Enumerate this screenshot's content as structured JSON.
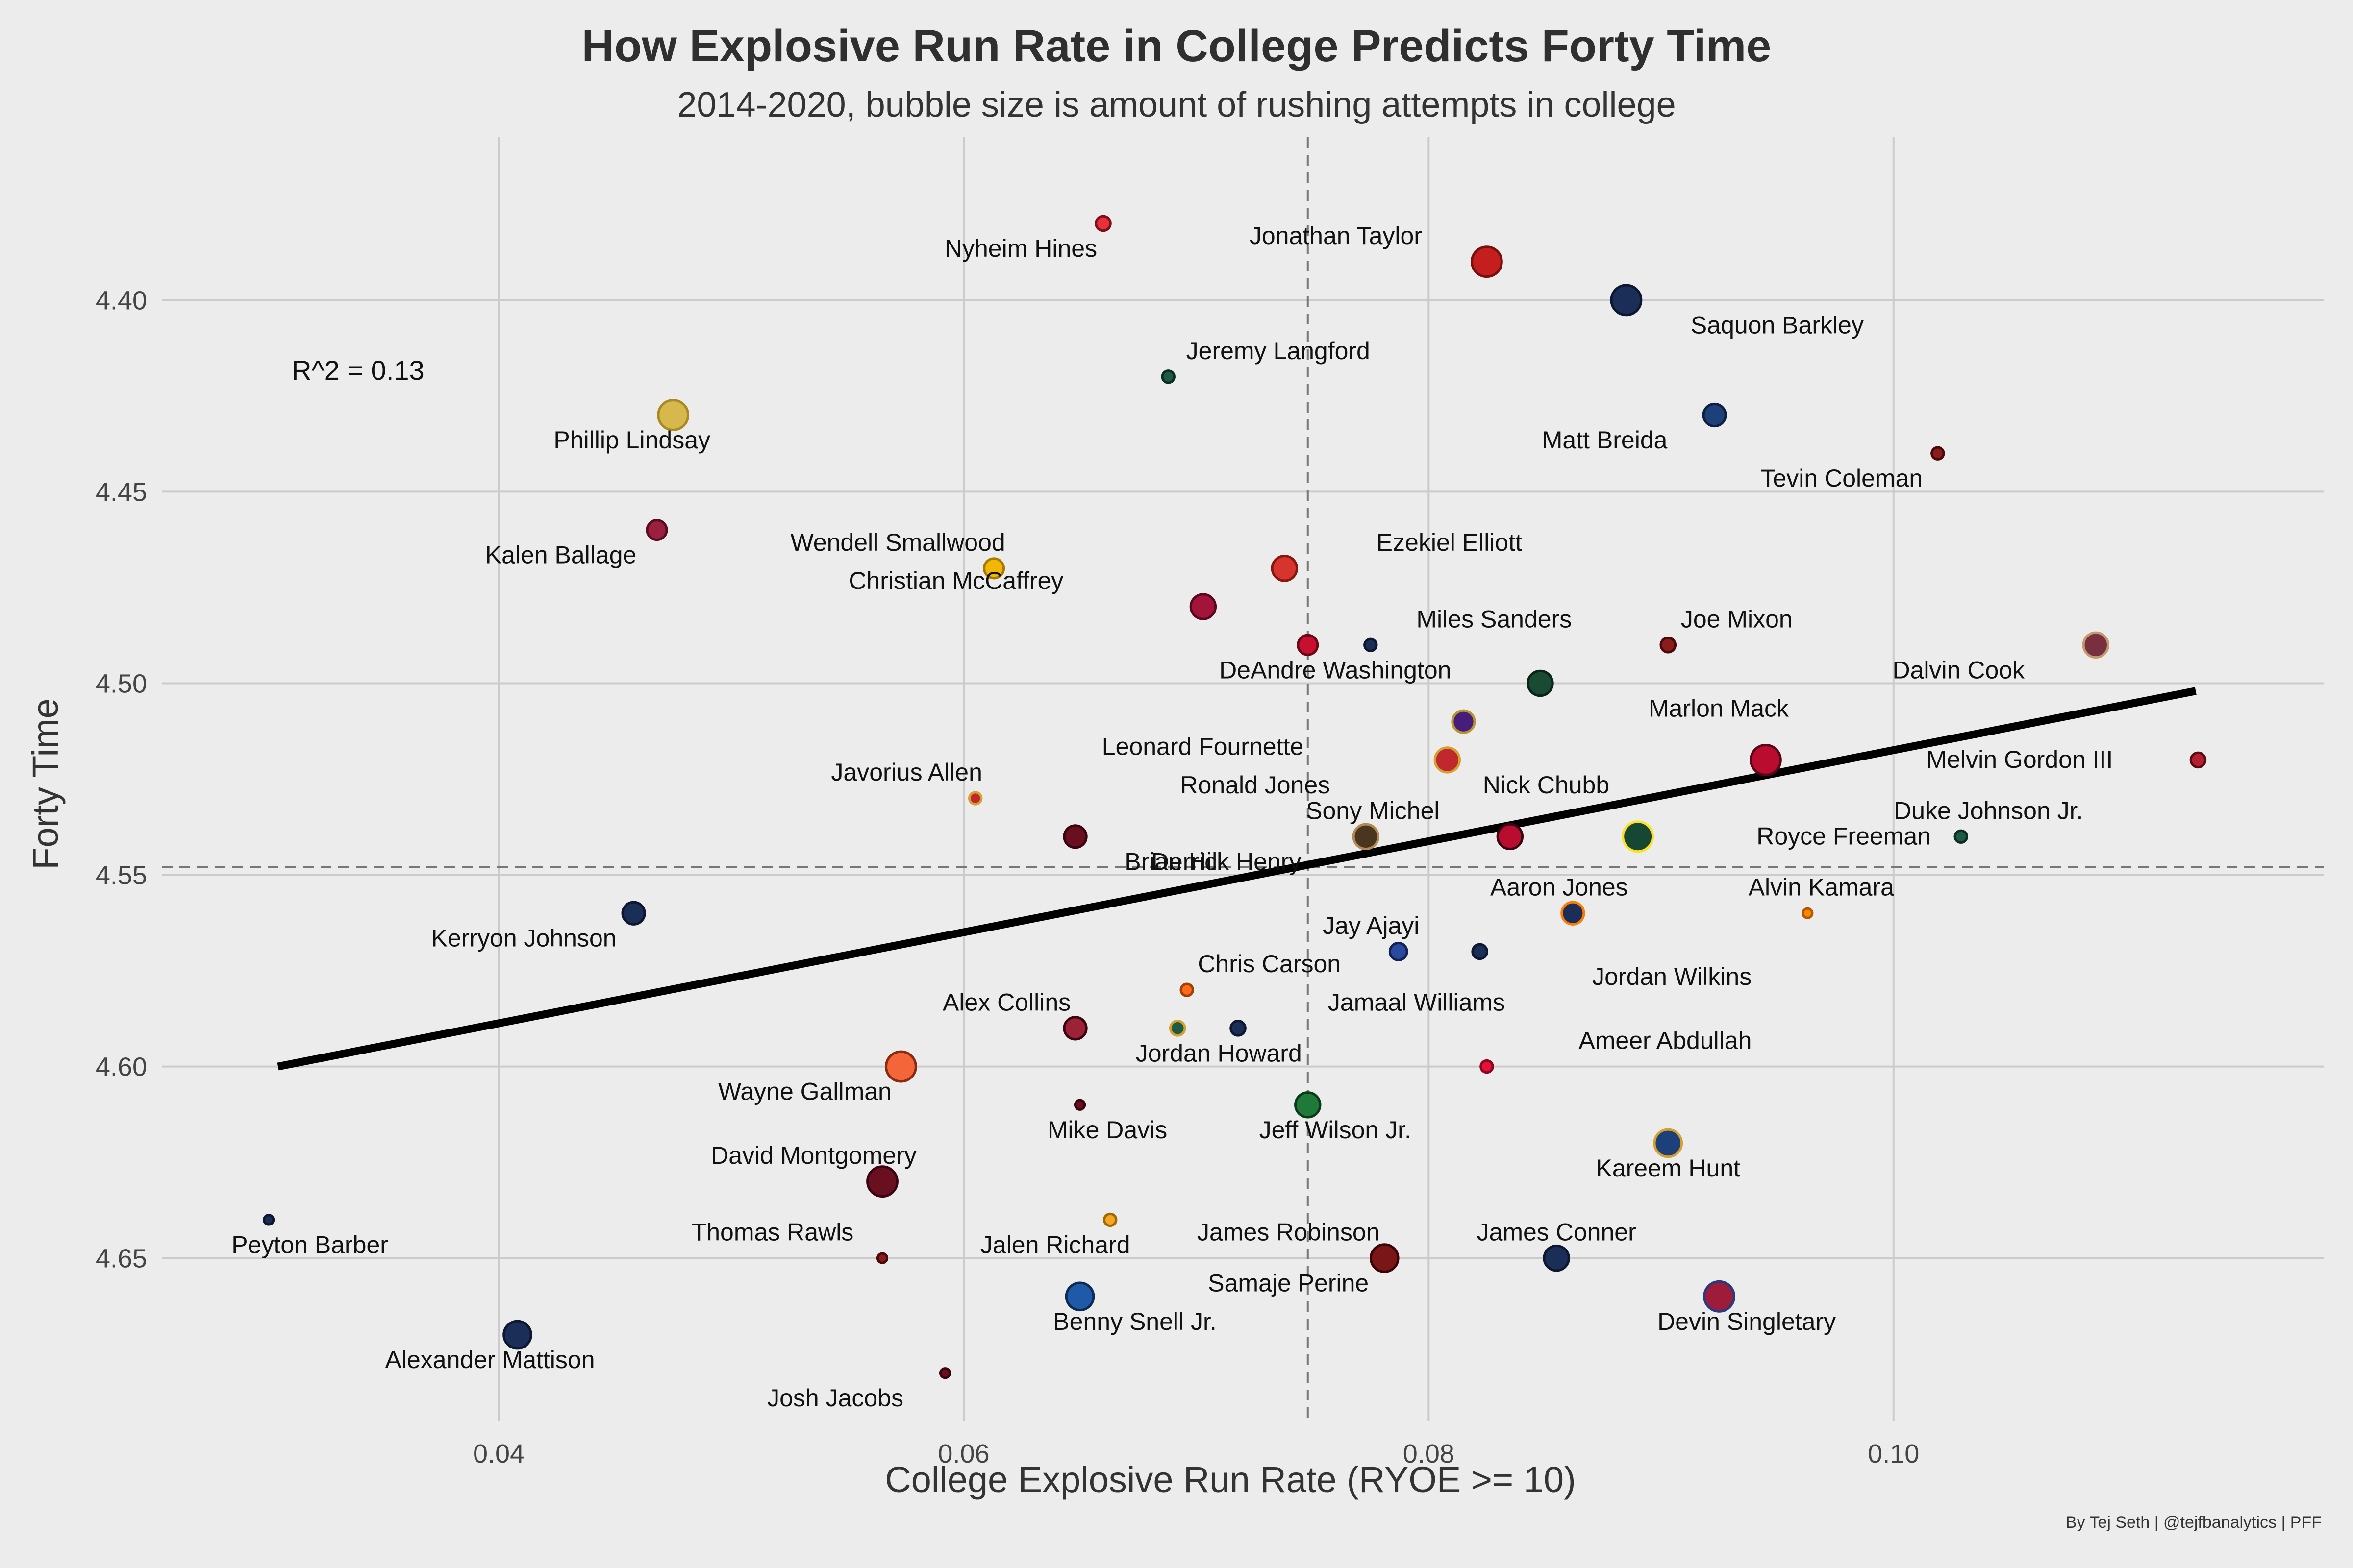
{
  "chart_data": {
    "type": "scatter",
    "title": "How Explosive Run Rate in College Predicts Forty Time",
    "subtitle": "2014-2020, bubble size is amount of rushing attempts in college",
    "xlabel": "College Explosive Run Rate (RYOE >= 10)",
    "ylabel": "Forty Time",
    "caption": "By Tej Seth | @tejfbanalytics | PFF",
    "annotation": "R^2 = 0.13",
    "xlim": [
      0.0255,
      0.1185
    ],
    "ylim": [
      4.3575,
      4.6925
    ],
    "y_inverted": true,
    "xticks": [
      0.04,
      0.06,
      0.08,
      0.1
    ],
    "xtick_labels": [
      "0.04",
      "0.06",
      "0.08",
      "0.10"
    ],
    "yticks": [
      4.4,
      4.45,
      4.5,
      4.55,
      4.6,
      4.65
    ],
    "ytick_labels": [
      "4.40",
      "4.45",
      "4.50",
      "4.55",
      "4.60",
      "4.65"
    ],
    "grid": true,
    "mean_lines": {
      "x": 0.0748,
      "y": 4.548
    },
    "trend_line": {
      "x": [
        0.0305,
        0.113
      ],
      "y": [
        4.6,
        4.502
      ]
    },
    "points": [
      {
        "name": "Nyheim Hines",
        "x": 0.066,
        "y": 4.38,
        "size": 3,
        "color": "#e8303a",
        "edge": "#7a1018",
        "label_dx": -6,
        "label_dy": 1
      },
      {
        "name": "Jonathan Taylor",
        "x": 0.0825,
        "y": 4.39,
        "size": 9,
        "color": "#c41e1e",
        "edge": "#7a0f0f",
        "label_dx": -11,
        "label_dy": -1
      },
      {
        "name": "Saquon Barkley",
        "x": 0.0885,
        "y": 4.4,
        "size": 9,
        "color": "#1b2e57",
        "edge": "#0d1730",
        "label_dx": 11,
        "label_dy": 1
      },
      {
        "name": "Jeremy Langford",
        "x": 0.0688,
        "y": 4.42,
        "size": 2,
        "color": "#1d5b45",
        "edge": "#0d2e22",
        "label_dx": 8,
        "label_dy": -1
      },
      {
        "name": "Phillip Lindsay",
        "x": 0.0475,
        "y": 4.43,
        "size": 9,
        "color": "#d6b84d",
        "edge": "#a88a20",
        "label_dx": -3,
        "label_dy": 1
      },
      {
        "name": "Matt Breida",
        "x": 0.0923,
        "y": 4.43,
        "size": 6,
        "color": "#1d3f7a",
        "edge": "#0d2040",
        "label_dx": -8,
        "label_dy": 1
      },
      {
        "name": "Tevin Coleman",
        "x": 0.1019,
        "y": 4.44,
        "size": 2,
        "color": "#8a1c1c",
        "edge": "#4a0a0a",
        "label_dx": -7,
        "label_dy": 1
      },
      {
        "name": "Kalen Ballage",
        "x": 0.0468,
        "y": 4.46,
        "size": 5,
        "color": "#9b2040",
        "edge": "#5a0c20",
        "label_dx": -7,
        "label_dy": 1
      },
      {
        "name": "Wendell Smallwood",
        "x": 0.0613,
        "y": 4.47,
        "size": 5,
        "color": "#f2b705",
        "edge": "#a87a00",
        "label_dx": -7,
        "label_dy": -1
      },
      {
        "name": "Ezekiel Elliott",
        "x": 0.0738,
        "y": 4.47,
        "size": 7,
        "color": "#d8342e",
        "edge": "#8a1612",
        "label_dx": 12,
        "label_dy": -1
      },
      {
        "name": "Christian McCaffrey",
        "x": 0.0703,
        "y": 4.48,
        "size": 7,
        "color": "#a3143a",
        "edge": "#5a0820",
        "label_dx": -18,
        "label_dy": -1
      },
      {
        "name": "Miles Sanders",
        "x": 0.0775,
        "y": 4.49,
        "size": 2,
        "color": "#1b2e57",
        "edge": "#0d1730",
        "label_dx": 9,
        "label_dy": -1
      },
      {
        "name": "DeAndre Washington",
        "x": 0.0748,
        "y": 4.49,
        "size": 5,
        "color": "#c8102e",
        "edge": "#6a0818",
        "label_dx": 2,
        "label_dy": 1
      },
      {
        "name": "Joe Mixon",
        "x": 0.0903,
        "y": 4.49,
        "size": 3,
        "color": "#8a1c1c",
        "edge": "#4a0a0a",
        "label_dx": 5,
        "label_dy": -1
      },
      {
        "name": "Dalvin Cook",
        "x": 0.1087,
        "y": 4.49,
        "size": 7,
        "color": "#782f40",
        "edge": "#c49a6c",
        "label_dx": -10,
        "label_dy": 1
      },
      {
        "name": "Marlon Mack",
        "x": 0.0848,
        "y": 4.5,
        "size": 7,
        "color": "#1a4a32",
        "edge": "#0a2418",
        "label_dx": 13,
        "label_dy": 1
      },
      {
        "name": "Leonard Fournette",
        "x": 0.0815,
        "y": 4.51,
        "size": 6,
        "color": "#461d7c",
        "edge": "#b8962e",
        "label_dx": -19,
        "label_dy": 1
      },
      {
        "name": "Melvin Gordon III",
        "x": 0.1131,
        "y": 4.52,
        "size": 3,
        "color": "#b51f2e",
        "edge": "#5a0c14",
        "label_dx": -13,
        "label_dy": 0
      },
      {
        "name": "Nick Chubb",
        "x": 0.0945,
        "y": 4.52,
        "size": 9,
        "color": "#ba0c2f",
        "edge": "#5a0616",
        "label_dx": -16,
        "label_dy": 1
      },
      {
        "name": "Ronald Jones",
        "x": 0.0808,
        "y": 4.52,
        "size": 7,
        "color": "#c0282e",
        "edge": "#d4a030",
        "label_dx": -14,
        "label_dy": 1
      },
      {
        "name": "Javorius Allen",
        "x": 0.0605,
        "y": 4.53,
        "size": 2,
        "color": "#c0282e",
        "edge": "#d4a030",
        "label_dx": -5,
        "label_dy": -1
      },
      {
        "name": "Derrick Henry",
        "x": 0.0648,
        "y": 4.54,
        "size": 6,
        "color": "#6a0f1f",
        "edge": "#3a0510",
        "label_dx": 11,
        "label_dy": 1
      },
      {
        "name": "Brian Hill",
        "x": 0.0773,
        "y": 4.54,
        "size": 7,
        "color": "#4a3520",
        "edge": "#b08a50",
        "label_dx": -14,
        "label_dy": 1
      },
      {
        "name": "Sony Michel",
        "x": 0.0835,
        "y": 4.54,
        "size": 7,
        "color": "#ba0c2f",
        "edge": "#3a0510",
        "label_dx": -10,
        "label_dy": -1
      },
      {
        "name": "Royce Freeman",
        "x": 0.089,
        "y": 4.54,
        "size": 9,
        "color": "#154733",
        "edge": "#fee123",
        "label_dx": 15,
        "label_dy": 0
      },
      {
        "name": "Duke Johnson Jr.",
        "x": 0.1029,
        "y": 4.54,
        "size": 2,
        "color": "#1d5b45",
        "edge": "#0d2e22",
        "label_dx": 2,
        "label_dy": -1
      },
      {
        "name": "Kerryon Johnson",
        "x": 0.0458,
        "y": 4.56,
        "size": 6,
        "color": "#1b2e57",
        "edge": "#0d1730",
        "label_dx": -8,
        "label_dy": 1
      },
      {
        "name": "Aaron Jones",
        "x": 0.0862,
        "y": 4.56,
        "size": 6,
        "color": "#1b2e57",
        "edge": "#ff7a00",
        "label_dx": -1,
        "label_dy": -1
      },
      {
        "name": "Alvin Kamara",
        "x": 0.0963,
        "y": 4.56,
        "size": 1,
        "color": "#ff8200",
        "edge": "#b05a00",
        "label_dx": 1,
        "label_dy": -1
      },
      {
        "name": "Jay Ajayi",
        "x": 0.0787,
        "y": 4.57,
        "size": 4,
        "color": "#2a4aa0",
        "edge": "#132250",
        "label_dx": -2,
        "label_dy": -1
      },
      {
        "name": "Jordan Wilkins",
        "x": 0.0822,
        "y": 4.57,
        "size": 3,
        "color": "#1b2e57",
        "edge": "#0d1730",
        "label_dx": 14,
        "label_dy": 1
      },
      {
        "name": "Chris Carson",
        "x": 0.0696,
        "y": 4.58,
        "size": 2,
        "color": "#ff6a1a",
        "edge": "#a04000",
        "label_dx": 6,
        "label_dy": -1
      },
      {
        "name": "Alex Collins",
        "x": 0.0648,
        "y": 4.59,
        "size": 6,
        "color": "#9d2235",
        "edge": "#3a0510",
        "label_dx": -5,
        "label_dy": -1
      },
      {
        "name": "Jordan Howard",
        "x": 0.0692,
        "y": 4.59,
        "size": 3,
        "color": "#1d5b45",
        "edge": "#d4a030",
        "label_dx": 3,
        "label_dy": 1
      },
      {
        "name": "Jamaal Williams",
        "x": 0.0718,
        "y": 4.59,
        "size": 3,
        "color": "#1b2e57",
        "edge": "#0d1730",
        "label_dx": 13,
        "label_dy": -1
      },
      {
        "name": "Wayne Gallman",
        "x": 0.0573,
        "y": 4.6,
        "size": 9,
        "color": "#f5653a",
        "edge": "#8a2a10",
        "label_dx": -7,
        "label_dy": 1
      },
      {
        "name": "Ameer Abdullah",
        "x": 0.0825,
        "y": 4.6,
        "size": 2,
        "color": "#e8103a",
        "edge": "#8a0820",
        "label_dx": 13,
        "label_dy": -1
      },
      {
        "name": "Mike Davis",
        "x": 0.065,
        "y": 4.61,
        "size": 1,
        "color": "#6a0f1f",
        "edge": "#3a0510",
        "label_dx": 2,
        "label_dy": 1
      },
      {
        "name": "Jeff Wilson Jr.",
        "x": 0.0748,
        "y": 4.61,
        "size": 7,
        "color": "#1f7a3a",
        "edge": "#0a3a1a",
        "label_dx": 2,
        "label_dy": 1
      },
      {
        "name": "Kareem Hunt",
        "x": 0.0903,
        "y": 4.62,
        "size": 8,
        "color": "#1d3f7a",
        "edge": "#d4a030",
        "label_dx": 0,
        "label_dy": 1
      },
      {
        "name": "David Montgomery",
        "x": 0.0565,
        "y": 4.63,
        "size": 9,
        "color": "#6a0f1f",
        "edge": "#3a0510",
        "label_dx": -5,
        "label_dy": -1
      },
      {
        "name": "Peyton Barber",
        "x": 0.0301,
        "y": 4.64,
        "size": 1,
        "color": "#1b2e57",
        "edge": "#0d1730",
        "label_dx": 3,
        "label_dy": 1
      },
      {
        "name": "Thomas Rawls",
        "x": 0.0565,
        "y": 4.65,
        "size": 1,
        "color": "#8a1c1c",
        "edge": "#4a0a0a",
        "label_dx": -8,
        "label_dy": -1
      },
      {
        "name": "Jalen Richard",
        "x": 0.0663,
        "y": 4.64,
        "size": 2,
        "color": "#f5a623",
        "edge": "#a06a00",
        "label_dx": -4,
        "label_dy": 1
      },
      {
        "name": "James Robinson",
        "x": 0.0781,
        "y": 4.65,
        "size": 8,
        "color": "#7a1518",
        "edge": "#3a0508",
        "label_dx": -7,
        "label_dy": -1
      },
      {
        "name": "James Conner",
        "x": 0.0855,
        "y": 4.65,
        "size": 7,
        "color": "#1b2e57",
        "edge": "#0d1730",
        "label_dx": 0,
        "label_dy": -1
      },
      {
        "name": "Samaje Perine",
        "x": 0.0781,
        "y": 4.65,
        "size": 0,
        "color": "#7a1518",
        "edge": "#3a0508",
        "label_dx": -7,
        "label_dy": 1
      },
      {
        "name": "Benny Snell Jr.",
        "x": 0.065,
        "y": 4.66,
        "size": 8,
        "color": "#1f5aa8",
        "edge": "#0d2a55",
        "label_dx": 4,
        "label_dy": 1
      },
      {
        "name": "Devin Singletary",
        "x": 0.0925,
        "y": 4.66,
        "size": 9,
        "color": "#9e1b3a",
        "edge": "#2a3a80",
        "label_dx": 2,
        "label_dy": 1
      },
      {
        "name": "Alexander Mattison",
        "x": 0.0408,
        "y": 4.67,
        "size": 8,
        "color": "#1b2e57",
        "edge": "#0d1730",
        "label_dx": -2,
        "label_dy": 1
      },
      {
        "name": "Josh Jacobs",
        "x": 0.0592,
        "y": 4.68,
        "size": 1,
        "color": "#6a0f1f",
        "edge": "#3a0510",
        "label_dx": -8,
        "label_dy": 1
      }
    ]
  }
}
